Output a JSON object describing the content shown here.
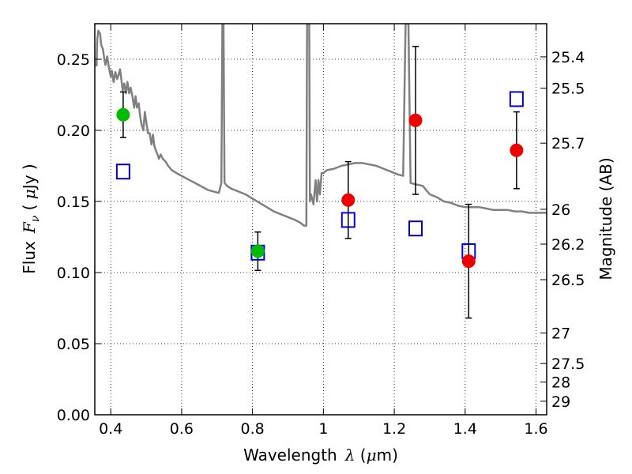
{
  "chart_data": {
    "type": "scatter",
    "title": "",
    "xlabel": {
      "prefix": "Wavelength",
      "symbol": "λ",
      "unit_open": " (",
      "unit_mu": "μ",
      "unit_rest": "m)"
    },
    "ylabel": {
      "prefix": "Flux",
      "symbol": "F",
      "subscript": "ν",
      "unit_open": " ( ",
      "unit_mu": "μ",
      "unit_rest": "Jy )"
    },
    "y2label": "Magnitude (AB)",
    "xlim": [
      0.355,
      1.63
    ],
    "ylim": [
      0.0,
      0.275
    ],
    "xticks": [
      0.4,
      0.6,
      0.8,
      1.0,
      1.2,
      1.4,
      1.6
    ],
    "xtick_labels": [
      "0.4",
      "0.6",
      "0.8",
      "1",
      "1.2",
      "1.4",
      "1.6"
    ],
    "yticks": [
      0.0,
      0.05,
      0.1,
      0.15,
      0.2,
      0.25
    ],
    "ytick_labels": [
      "0.00",
      "0.05",
      "0.10",
      "0.15",
      "0.20",
      "0.25"
    ],
    "y2ticks": [
      {
        "flux": 0.2517,
        "label": "25.4"
      },
      {
        "flux": 0.2296,
        "label": "25.5"
      },
      {
        "flux": 0.191,
        "label": "25.7"
      },
      {
        "flux": 0.1445,
        "label": "26"
      },
      {
        "flux": 0.12,
        "label": "26.2"
      },
      {
        "flux": 0.095,
        "label": "26.5"
      },
      {
        "flux": 0.0575,
        "label": "27"
      },
      {
        "flux": 0.036,
        "label": "27.5"
      },
      {
        "flux": 0.023,
        "label": "28"
      },
      {
        "flux": 0.0095,
        "label": "29"
      }
    ],
    "grid": true,
    "colors": {
      "template": "#808080",
      "green": "#00bb00",
      "red": "#ee0000",
      "model": "#0000dd",
      "error": "#000000"
    },
    "series": [
      {
        "kind": "line",
        "points": [
          [
            0.36,
            0.245
          ],
          [
            0.362,
            0.264
          ],
          [
            0.365,
            0.27
          ],
          [
            0.37,
            0.268
          ],
          [
            0.373,
            0.26
          ],
          [
            0.378,
            0.257
          ],
          [
            0.382,
            0.25
          ],
          [
            0.385,
            0.246
          ],
          [
            0.39,
            0.252
          ],
          [
            0.395,
            0.244
          ],
          [
            0.4,
            0.238
          ],
          [
            0.403,
            0.242
          ],
          [
            0.408,
            0.234
          ],
          [
            0.413,
            0.241
          ],
          [
            0.418,
            0.236
          ],
          [
            0.422,
            0.239
          ],
          [
            0.426,
            0.243
          ],
          [
            0.43,
            0.236
          ],
          [
            0.434,
            0.228
          ],
          [
            0.438,
            0.233
          ],
          [
            0.443,
            0.226
          ],
          [
            0.447,
            0.234
          ],
          [
            0.452,
            0.226
          ],
          [
            0.456,
            0.23
          ],
          [
            0.461,
            0.224
          ],
          [
            0.466,
            0.216
          ],
          [
            0.47,
            0.224
          ],
          [
            0.474,
            0.216
          ],
          [
            0.479,
            0.219
          ],
          [
            0.483,
            0.21
          ],
          [
            0.487,
            0.204
          ],
          [
            0.492,
            0.2
          ],
          [
            0.496,
            0.213
          ],
          [
            0.5,
            0.206
          ],
          [
            0.505,
            0.198
          ],
          [
            0.51,
            0.198
          ],
          [
            0.515,
            0.19
          ],
          [
            0.519,
            0.197
          ],
          [
            0.523,
            0.189
          ],
          [
            0.527,
            0.186
          ],
          [
            0.532,
            0.183
          ],
          [
            0.536,
            0.18
          ],
          [
            0.541,
            0.183
          ],
          [
            0.547,
            0.18
          ],
          [
            0.555,
            0.178
          ],
          [
            0.562,
            0.175
          ],
          [
            0.572,
            0.172
          ],
          [
            0.585,
            0.17
          ],
          [
            0.6,
            0.168
          ],
          [
            0.615,
            0.166
          ],
          [
            0.63,
            0.164
          ],
          [
            0.645,
            0.162
          ],
          [
            0.66,
            0.16
          ],
          [
            0.675,
            0.158
          ],
          [
            0.69,
            0.157
          ],
          [
            0.705,
            0.156
          ],
          [
            0.712,
            0.163
          ],
          [
            0.715,
            0.275
          ],
          [
            0.718,
            0.275
          ],
          [
            0.721,
            0.163
          ],
          [
            0.728,
            0.161
          ],
          [
            0.74,
            0.159
          ],
          [
            0.76,
            0.157
          ],
          [
            0.78,
            0.155
          ],
          [
            0.8,
            0.152
          ],
          [
            0.82,
            0.149
          ],
          [
            0.84,
            0.146
          ],
          [
            0.86,
            0.143
          ],
          [
            0.88,
            0.141
          ],
          [
            0.9,
            0.139
          ],
          [
            0.92,
            0.137
          ],
          [
            0.935,
            0.135
          ],
          [
            0.945,
            0.133
          ],
          [
            0.952,
            0.133
          ],
          [
            0.954,
            0.275
          ],
          [
            0.96,
            0.275
          ],
          [
            0.962,
            0.15
          ],
          [
            0.965,
            0.155
          ],
          [
            0.972,
            0.148
          ],
          [
            0.978,
            0.165
          ],
          [
            0.982,
            0.15
          ],
          [
            0.986,
            0.165
          ],
          [
            0.99,
            0.155
          ],
          [
            0.995,
            0.17
          ],
          [
            1.0,
            0.17
          ],
          [
            1.01,
            0.172
          ],
          [
            1.03,
            0.173
          ],
          [
            1.05,
            0.175
          ],
          [
            1.07,
            0.176
          ],
          [
            1.09,
            0.177
          ],
          [
            1.11,
            0.177
          ],
          [
            1.13,
            0.176
          ],
          [
            1.15,
            0.175
          ],
          [
            1.17,
            0.173
          ],
          [
            1.19,
            0.171
          ],
          [
            1.21,
            0.169
          ],
          [
            1.225,
            0.168
          ],
          [
            1.232,
            0.275
          ],
          [
            1.24,
            0.275
          ],
          [
            1.246,
            0.163
          ],
          [
            1.26,
            0.162
          ],
          [
            1.28,
            0.161
          ],
          [
            1.3,
            0.155
          ],
          [
            1.32,
            0.153
          ],
          [
            1.34,
            0.15
          ],
          [
            1.36,
            0.149
          ],
          [
            1.38,
            0.147
          ],
          [
            1.4,
            0.146
          ],
          [
            1.42,
            0.146
          ],
          [
            1.44,
            0.146
          ],
          [
            1.46,
            0.145
          ],
          [
            1.48,
            0.144
          ],
          [
            1.5,
            0.144
          ],
          [
            1.52,
            0.144
          ],
          [
            1.54,
            0.143
          ],
          [
            1.56,
            0.143
          ],
          [
            1.58,
            0.142
          ],
          [
            1.6,
            0.142
          ],
          [
            1.63,
            0.142
          ]
        ]
      },
      {
        "kind": "observed",
        "color": "green",
        "points": [
          {
            "x": 0.435,
            "y": 0.211,
            "err": 0.016
          },
          {
            "x": 0.815,
            "y": 0.115,
            "err": 0.0135
          }
        ]
      },
      {
        "kind": "observed",
        "color": "red",
        "points": [
          {
            "x": 1.07,
            "y": 0.151,
            "err": 0.027
          },
          {
            "x": 1.26,
            "y": 0.207,
            "err": 0.052
          },
          {
            "x": 1.41,
            "y": 0.108,
            "err": 0.04
          },
          {
            "x": 1.545,
            "y": 0.186,
            "err": 0.027
          }
        ]
      },
      {
        "kind": "model",
        "color": "model",
        "points": [
          {
            "x": 0.435,
            "y": 0.171
          },
          {
            "x": 0.815,
            "y": 0.114
          },
          {
            "x": 1.07,
            "y": 0.137
          },
          {
            "x": 1.26,
            "y": 0.131
          },
          {
            "x": 1.41,
            "y": 0.115
          },
          {
            "x": 1.545,
            "y": 0.222
          }
        ]
      }
    ]
  }
}
